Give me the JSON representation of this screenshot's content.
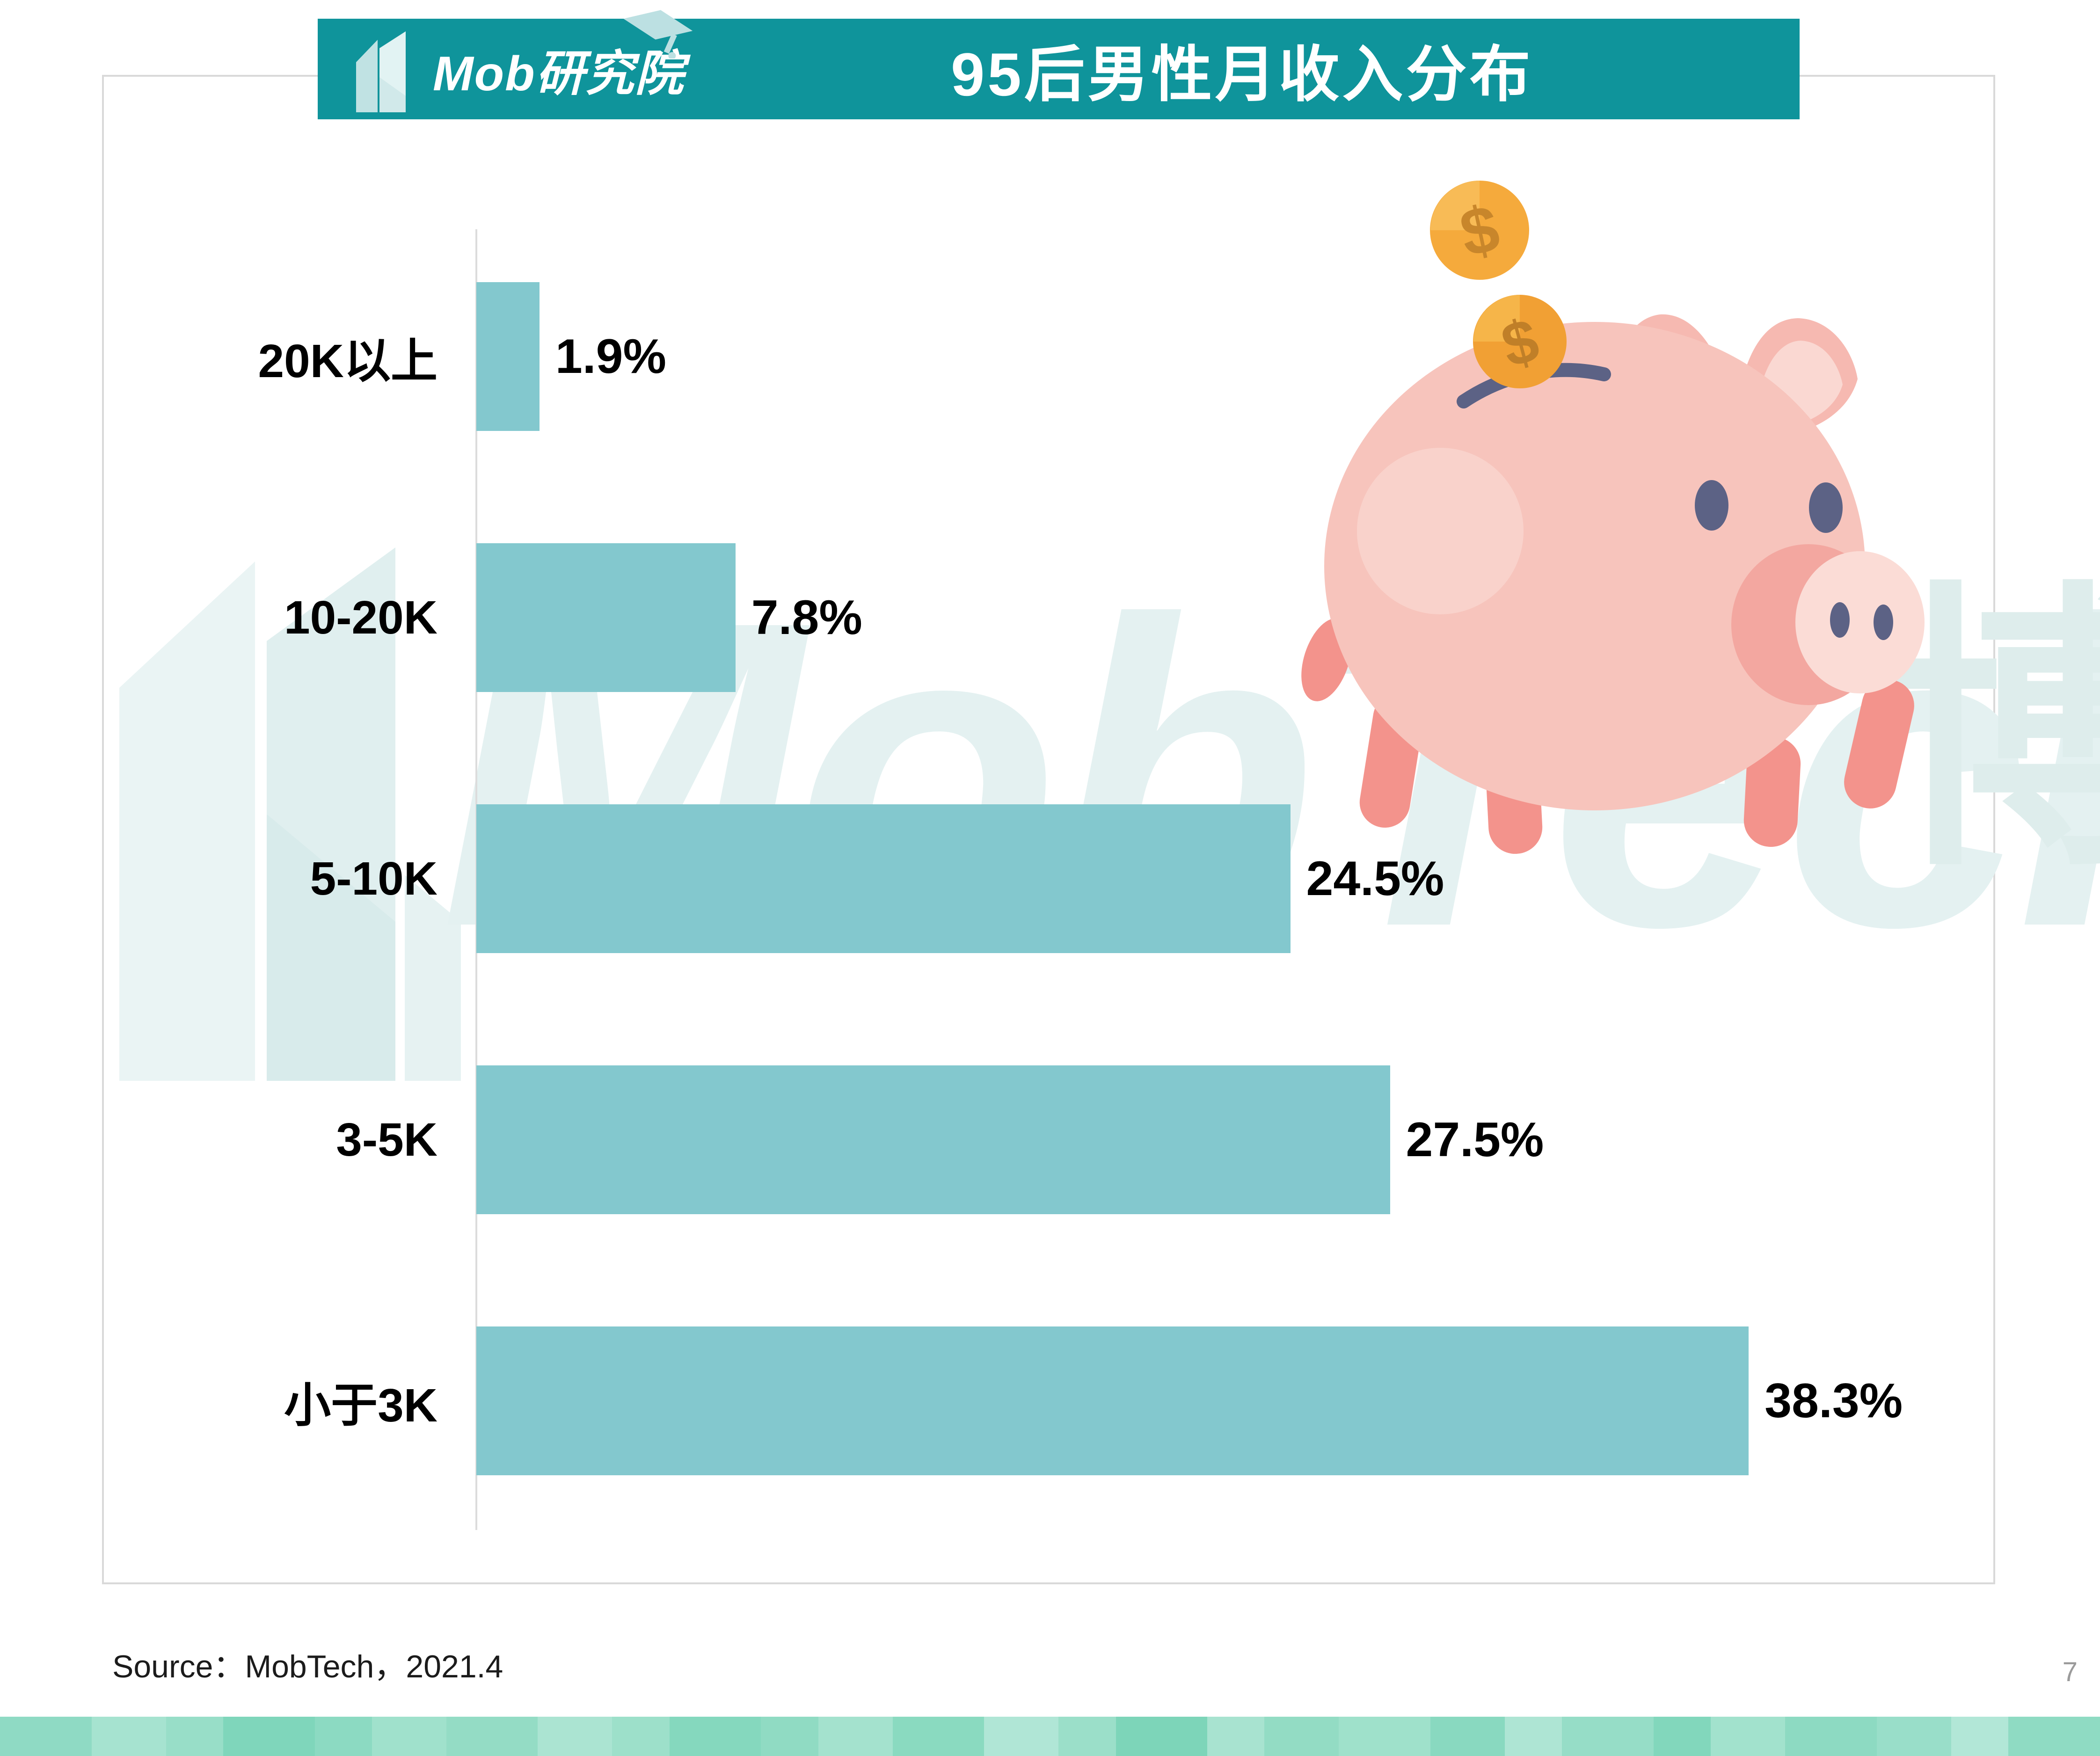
{
  "header": {
    "logo_text": "Mob研究院",
    "title": "95后男性月收入分布"
  },
  "chart_data": {
    "type": "bar",
    "orientation": "horizontal",
    "title": "95后男性月收入分布",
    "categories": [
      "20K以上",
      "10-20K",
      "5-10K",
      "3-5K",
      "小于3K"
    ],
    "values": [
      1.9,
      7.8,
      24.5,
      27.5,
      38.3
    ],
    "value_labels": [
      "1.9%",
      "7.8%",
      "24.5%",
      "27.5%",
      "38.3%"
    ],
    "unit": "%",
    "xlim": [
      0,
      40
    ],
    "grid": false,
    "legend": "none",
    "bar_color": "#83C8CE",
    "axis_color": "#DCDCDC"
  },
  "watermark": {
    "text": "MobTech",
    "cjk": "博"
  },
  "source": {
    "text": "Source：MobTech，2021.4"
  },
  "page_number": "7",
  "colors": {
    "header_teal": "#0F949B",
    "card_border": "#D9D9D9",
    "pig_body": "#F7C4BC",
    "pig_dark": "#5C6285",
    "pig_leg": "#F3938C",
    "coin_gold": "#F5AA3C"
  },
  "footer": {
    "band_colors": [
      "#8FDAC4",
      "#A6E3D0",
      "#98DEC8",
      "#7FD6BB",
      "#8CDAC2",
      "#A0E1CC",
      "#94DCC5",
      "#ABE4D2",
      "#9DE0CA",
      "#85D8BE",
      "#90DBC3",
      "#A4E2CE",
      "#8ADAC0",
      "#B0E6D6",
      "#9BDFC9",
      "#7DD5B9",
      "#A8E3D0",
      "#93DCC4",
      "#9FE1CB",
      "#89D9C0",
      "#AEE5D4",
      "#96DDC7",
      "#82D7BC",
      "#A2E2CD",
      "#8DDAC2",
      "#99DEC9",
      "#B2E7D7",
      "#8FDBC3"
    ]
  }
}
